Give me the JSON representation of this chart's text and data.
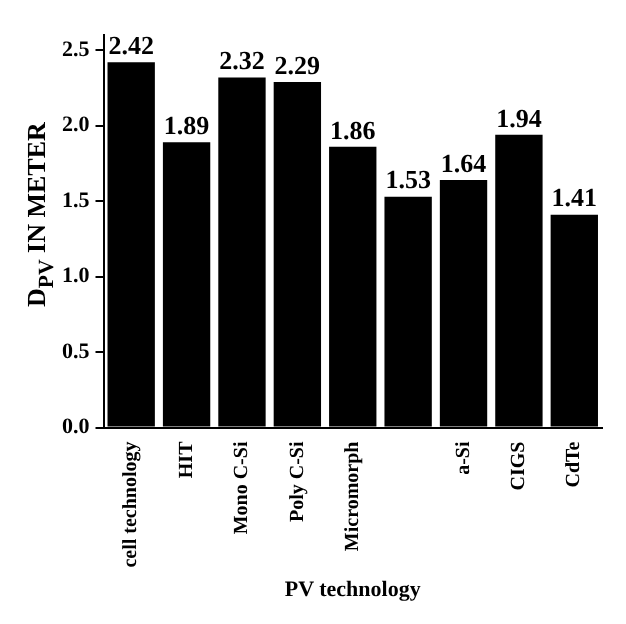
{
  "chart_data": {
    "type": "bar",
    "xlabel": "PV technology",
    "ylabel": "D$_{PV}$ IN METER",
    "categories": [
      "cell technology",
      "HIT",
      "Mono C-Si",
      "Poly C-Si",
      "Micromorph",
      null,
      "a-Si",
      "CIGS",
      "CdTe"
    ],
    "values": [
      2.42,
      1.89,
      2.32,
      2.29,
      1.86,
      1.53,
      1.64,
      1.94,
      1.41
    ],
    "color": "#000000",
    "ylim": [
      0,
      2.6
    ],
    "yticks": [
      {
        "value": 0,
        "label": "0.0"
      },
      {
        "value": 0.5,
        "label": "0.5"
      },
      {
        "value": 1,
        "label": "1.0"
      },
      {
        "value": 1.5,
        "label": "1.5"
      },
      {
        "value": 2,
        "label": "2.0"
      },
      {
        "value": 2.5,
        "label": "2.5"
      }
    ],
    "grid": false,
    "data_labels": true
  }
}
